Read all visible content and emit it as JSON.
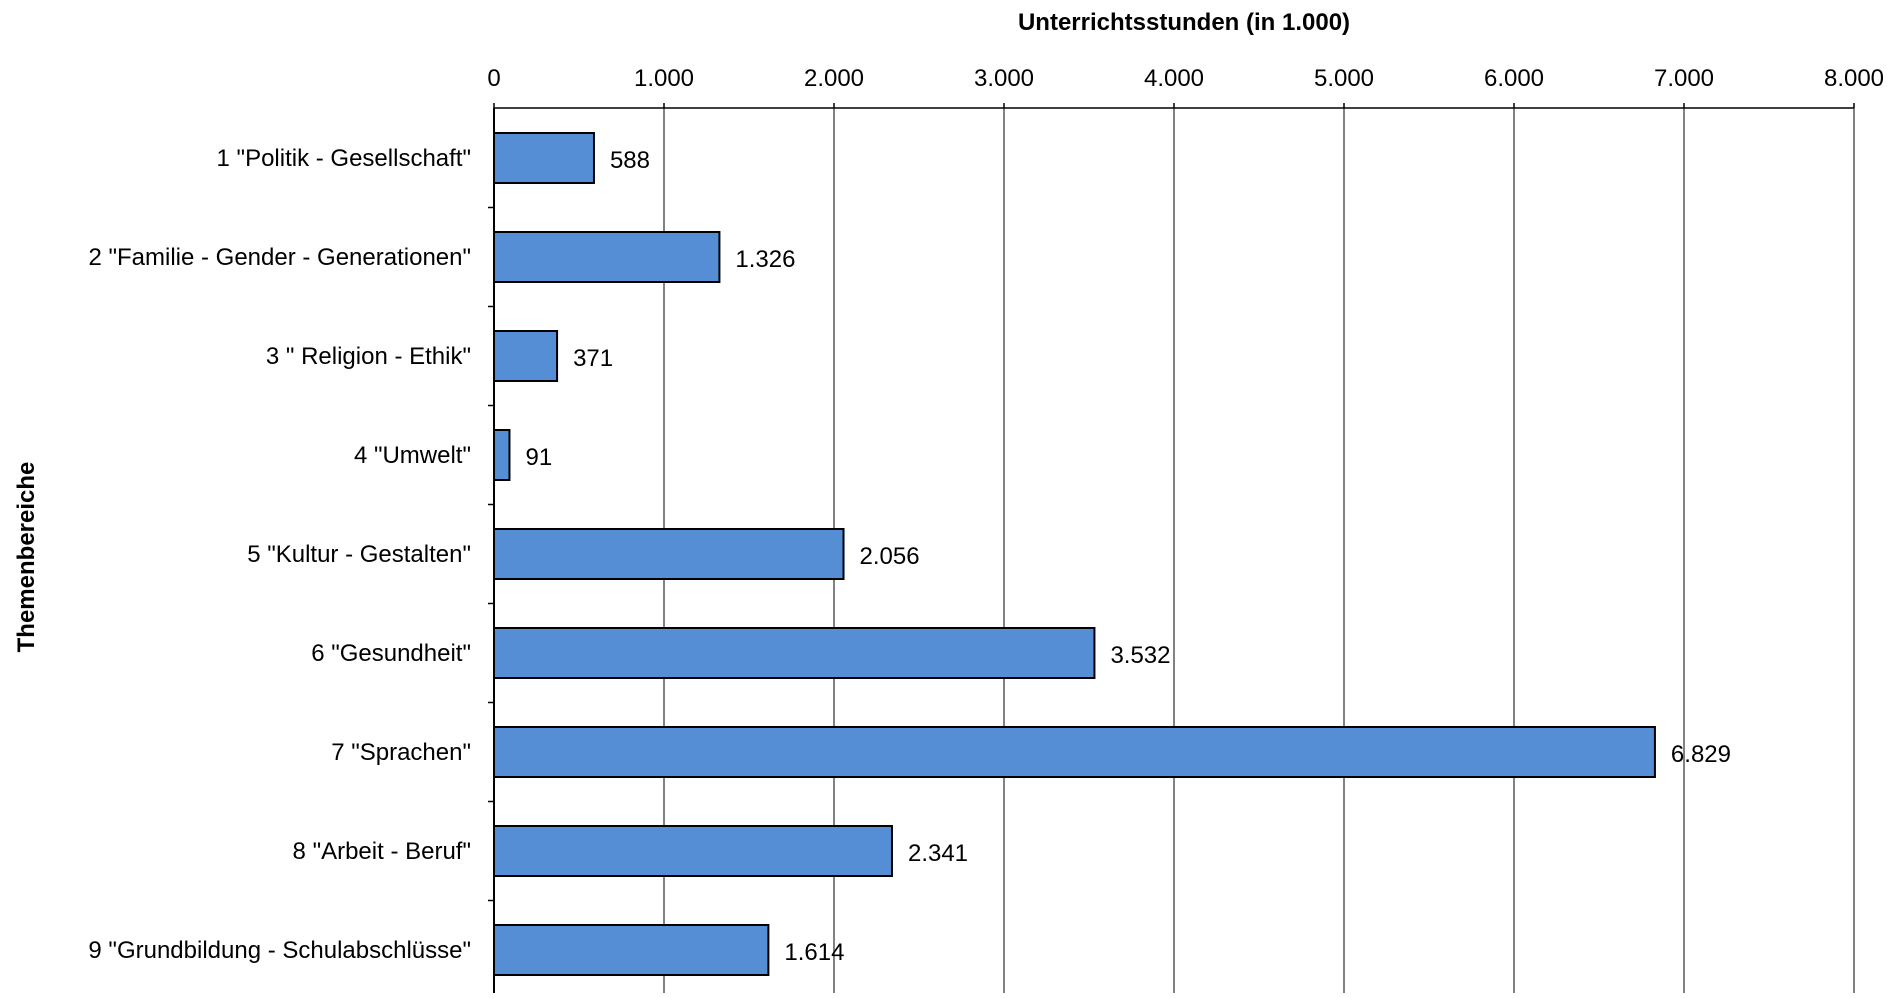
{
  "chart_data": {
    "type": "bar",
    "orientation": "horizontal",
    "xlabel": "Unterrichtsstunden (in 1.000)",
    "ylabel": "Themenbereiche",
    "categories": [
      "1 \"Politik - Gesellschaft\"",
      "2 \"Familie - Gender - Generationen\"",
      "3 \" Religion - Ethik\"",
      "4 \"Umwelt\"",
      "5 \"Kultur - Gestalten\"",
      "6 \"Gesundheit\"",
      "7 \"Sprachen\"",
      "8 \"Arbeit - Beruf\"",
      "9 \"Grundbildung - Schulabschlüsse\""
    ],
    "values": [
      588,
      1326,
      371,
      91,
      2056,
      3532,
      6829,
      2341,
      1614
    ],
    "value_labels": [
      "588",
      "1.326",
      "371",
      "91",
      "2.056",
      "3.532",
      "6.829",
      "2.341",
      "1.614"
    ],
    "xlim": [
      0,
      8000
    ],
    "xticks": [
      0,
      1000,
      2000,
      3000,
      4000,
      5000,
      6000,
      7000,
      8000
    ],
    "xtick_labels": [
      "0",
      "1.000",
      "2.000",
      "3.000",
      "4.000",
      "5.000",
      "6.000",
      "7.000",
      "8.000"
    ],
    "x_axis_position": "top",
    "grid": true,
    "legend": "none",
    "bar_color": "#558ED5",
    "bar_edge_color": "#000000",
    "grid_color": "#595959"
  }
}
